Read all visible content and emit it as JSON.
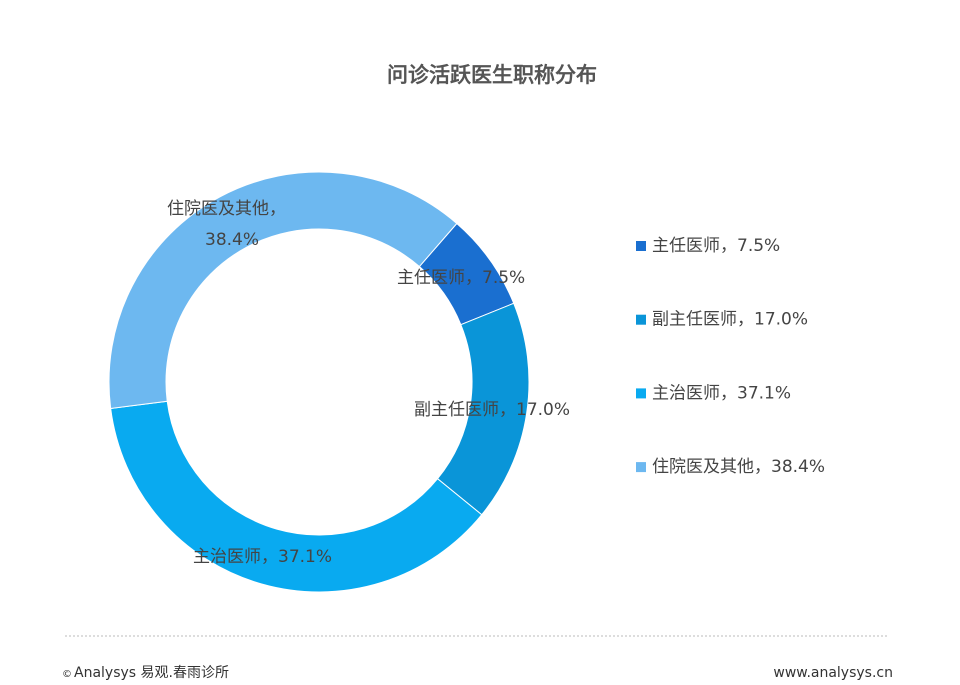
{
  "chart_data": {
    "type": "donut",
    "title": "问诊活跃医生职称分布",
    "values": [
      7.5,
      17.0,
      37.1,
      38.4
    ],
    "value_labels": [
      "主任医师，7.5%",
      "副主任医师，17.0%",
      "主治医师，37.1%",
      "住院医及其他，38.4%"
    ],
    "colors": [
      "#1a6fd0",
      "#0a95d8",
      "#09aaf0",
      "#6db8f0"
    ],
    "legend": "right"
  },
  "footer": {
    "left": "Analysys 易观.春雨诊所",
    "right": "www.analysys.cn"
  }
}
